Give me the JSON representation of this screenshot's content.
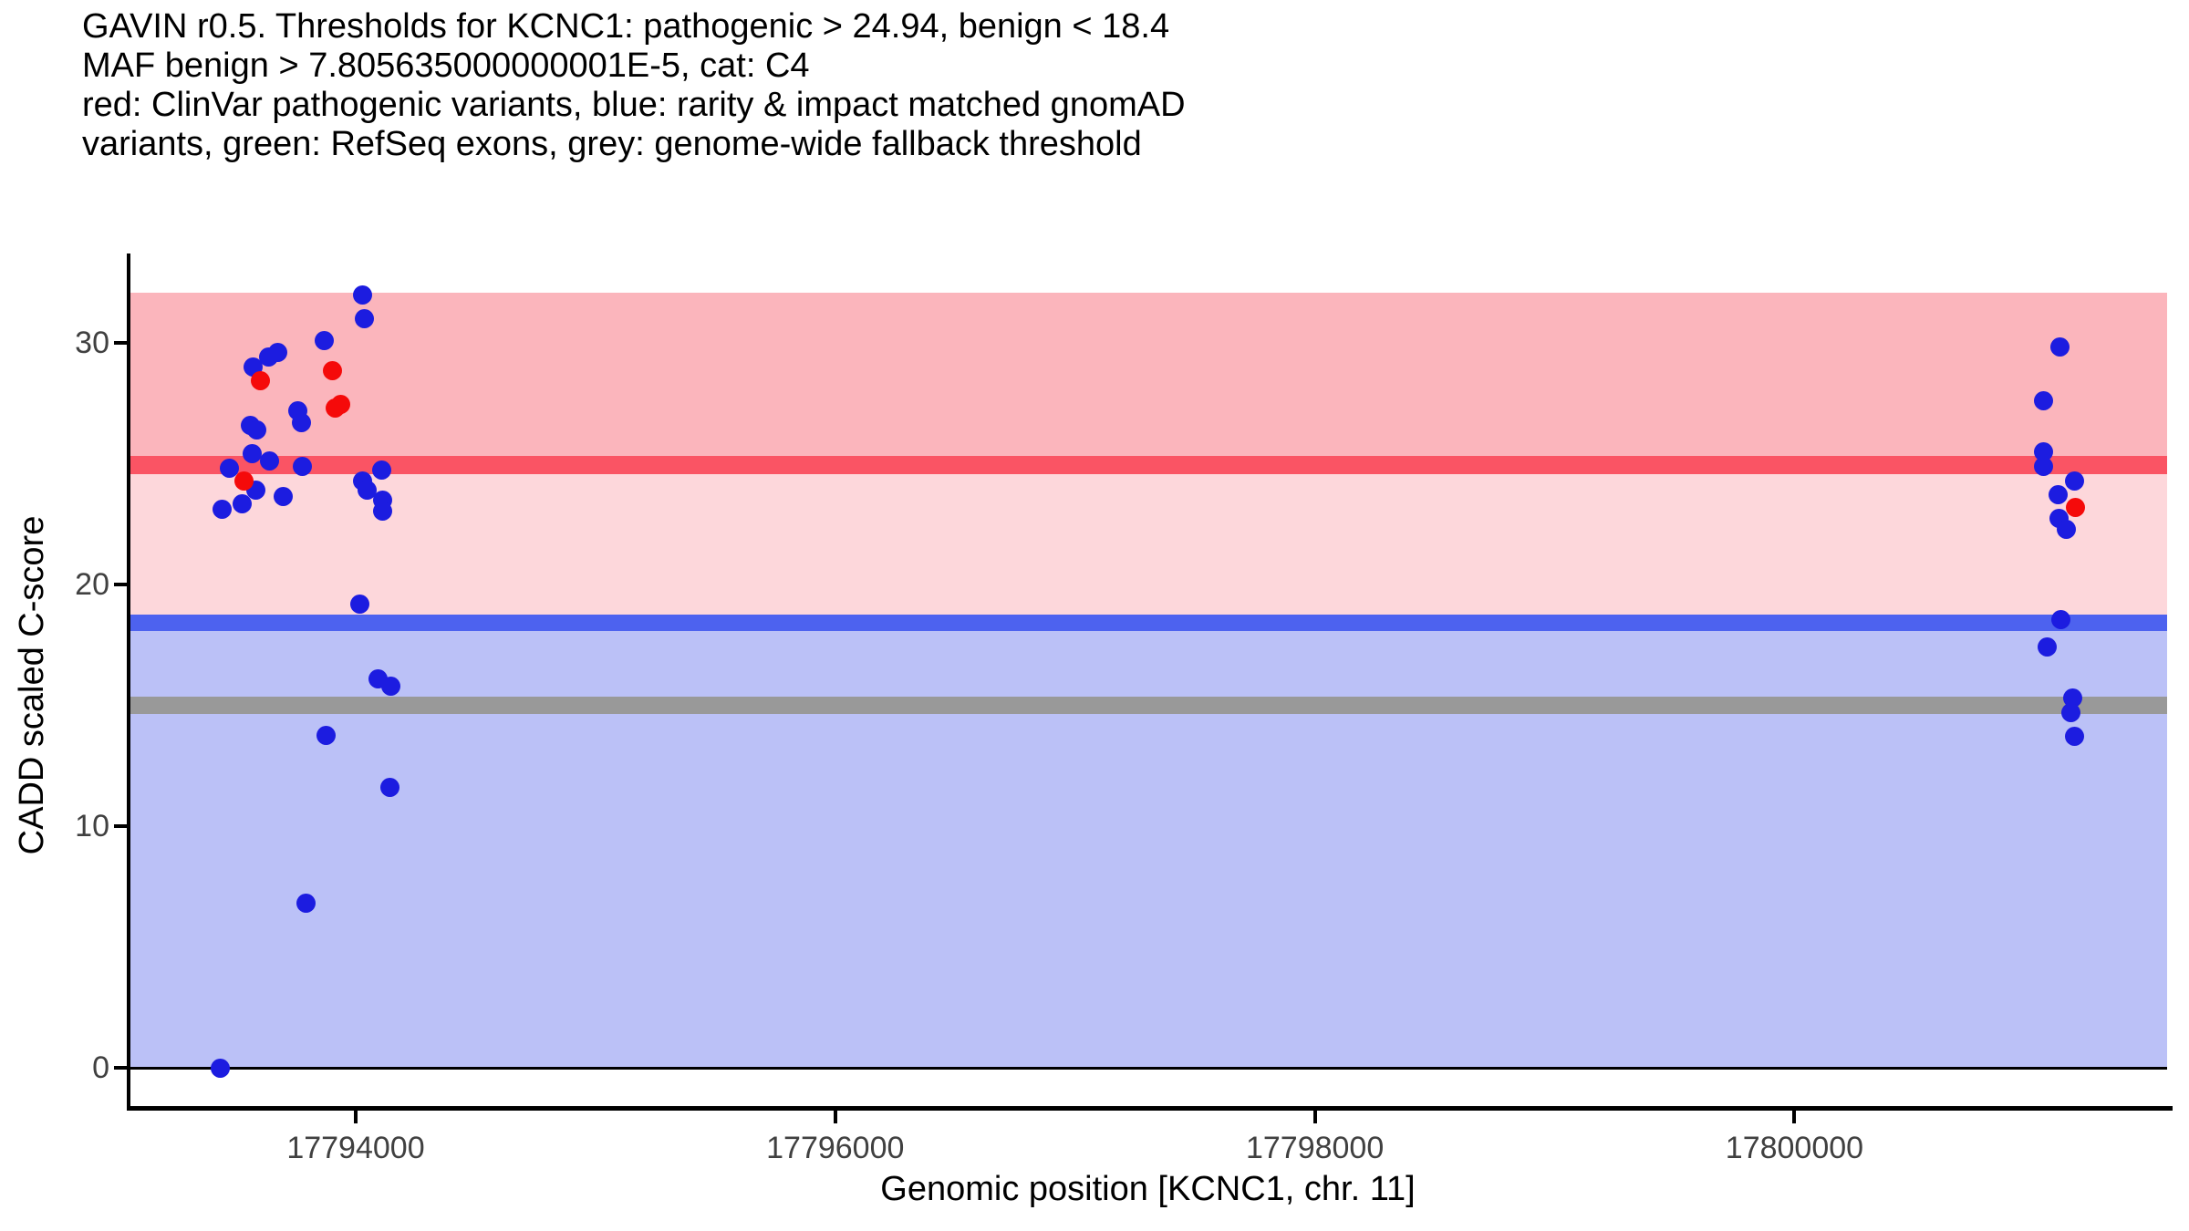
{
  "title_lines": [
    "GAVIN r0.5. Thresholds for KCNC1: pathogenic > 24.94, benign < 18.4",
    "MAF benign > 7.805635000000001E-5, cat: C4",
    "red: ClinVar pathogenic variants, blue: rarity & impact matched gnomAD",
    "variants, green: RefSeq exons, grey: genome-wide fallback threshold"
  ],
  "chart_data": {
    "type": "scatter",
    "title": "GAVIN r0.5. Thresholds for KCNC1: pathogenic > 24.94, benign < 18.4 MAF benign > 7.805635000000001E-5, cat: C4",
    "xlabel": "Genomic position [KCNC1, chr. 11]",
    "ylabel": "CADD scaled C-score",
    "xlim": [
      17793053,
      17801554
    ],
    "ylim": [
      -1.66,
      33.7
    ],
    "x_ticks": [
      17794000,
      17796000,
      17798000,
      17800000
    ],
    "y_ticks": [
      0,
      10,
      20,
      30
    ],
    "grid": false,
    "thresholds": {
      "pathogenic_gt": 24.94,
      "benign_lt": 18.4,
      "maf_benign_gt": "7.805635000000001E-5",
      "category": "C4",
      "genome_wide_fallback": 15
    },
    "bands": [
      {
        "ymin": 24.94,
        "ymax": 32.07,
        "color": "#FBB5BC",
        "label": "pathogenic region"
      },
      {
        "ymin": 18.4,
        "ymax": 24.94,
        "color": "#FDD7DB",
        "label": "intermediate region"
      },
      {
        "ymin": 0,
        "ymax": 18.4,
        "color": "#BBC1F7",
        "label": "benign region"
      }
    ],
    "threshold_lines": [
      {
        "y": 24.94,
        "thickness": 20,
        "color": "#FA5464",
        "label": "pathogenic threshold"
      },
      {
        "y": 18.4,
        "thickness": 18,
        "color": "#4D62EF",
        "label": "benign threshold"
      },
      {
        "y": 15,
        "thickness": 19,
        "color": "#999999",
        "label": "genome-wide fallback threshold"
      },
      {
        "y": 0,
        "thickness": 3,
        "color": "#000000",
        "label": "baseline"
      }
    ],
    "series": [
      {
        "name": "rarity & impact matched gnomAD variants",
        "color": "#1C1CE0",
        "points": [
          [
            17794030,
            32.0
          ],
          [
            17794038,
            31.0
          ],
          [
            17793867,
            30.1
          ],
          [
            17793635,
            29.4
          ],
          [
            17793673,
            29.6
          ],
          [
            17793574,
            29.0
          ],
          [
            17793757,
            27.2
          ],
          [
            17793772,
            26.7
          ],
          [
            17793559,
            26.6
          ],
          [
            17793589,
            26.4
          ],
          [
            17793570,
            25.4
          ],
          [
            17793639,
            25.1
          ],
          [
            17793475,
            24.8
          ],
          [
            17793779,
            24.9
          ],
          [
            17794107,
            24.75
          ],
          [
            17794027,
            24.3
          ],
          [
            17794046,
            23.9
          ],
          [
            17793582,
            23.9
          ],
          [
            17793696,
            23.65
          ],
          [
            17794114,
            23.5
          ],
          [
            17794114,
            23.05
          ],
          [
            17793528,
            23.35
          ],
          [
            17793441,
            23.1
          ],
          [
            17794019,
            19.2
          ],
          [
            17794095,
            16.1
          ],
          [
            17794145,
            15.8
          ],
          [
            17793878,
            13.75
          ],
          [
            17794141,
            11.6
          ],
          [
            17793791,
            6.8
          ],
          [
            17793437,
            0.0
          ],
          [
            17801107,
            29.85
          ],
          [
            17801038,
            27.6
          ],
          [
            17801038,
            25.5
          ],
          [
            17801038,
            24.9
          ],
          [
            17801168,
            24.3
          ],
          [
            17801099,
            23.7
          ],
          [
            17801103,
            22.75
          ],
          [
            17801133,
            22.3
          ],
          [
            17801111,
            18.55
          ],
          [
            17801053,
            17.4
          ],
          [
            17801160,
            15.3
          ],
          [
            17801152,
            14.7
          ],
          [
            17801168,
            13.7
          ]
        ]
      },
      {
        "name": "ClinVar pathogenic variants",
        "color": "#F50A0A",
        "points": [
          [
            17793601,
            28.45
          ],
          [
            17793905,
            28.85
          ],
          [
            17793916,
            27.3
          ],
          [
            17793939,
            27.45
          ],
          [
            17793536,
            24.3
          ],
          [
            17801172,
            23.2
          ]
        ]
      }
    ]
  },
  "colors": {
    "background": "#FFFFFF",
    "axis": "#000000",
    "tick_label": "#404040",
    "point_blue": "#1C1CE0",
    "point_red": "#F50A0A"
  }
}
